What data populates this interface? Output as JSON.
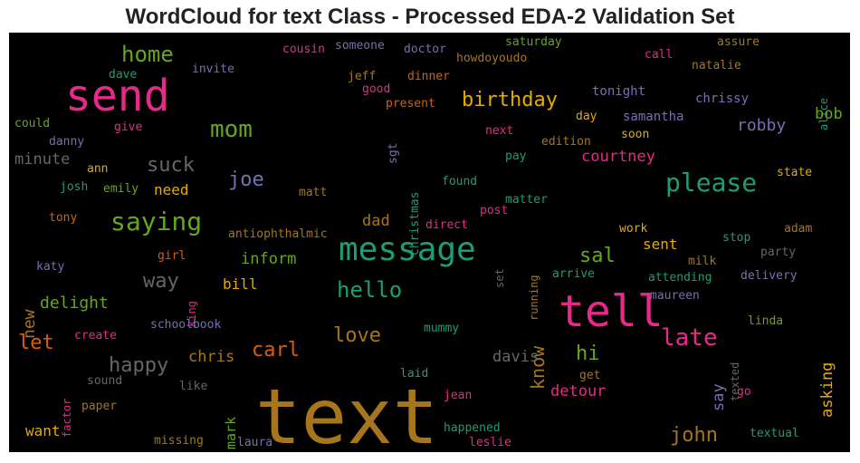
{
  "title": "WordCloud for text Class - Processed EDA-2 Validation Set",
  "colors": {
    "pink": "#e7298a",
    "green": "#1b9e77",
    "lime": "#66a61e",
    "gold": "#e6ab02",
    "purple": "#7570b3",
    "orange": "#d95f02",
    "brown": "#a6761d",
    "gray": "#666666"
  },
  "words": [
    {
      "text": "text",
      "color": "brown"
    },
    {
      "text": "tell",
      "color": "pink"
    },
    {
      "text": "send",
      "color": "pink"
    },
    {
      "text": "message",
      "color": "green"
    },
    {
      "text": "saying",
      "color": "lime"
    },
    {
      "text": "please",
      "color": "green"
    },
    {
      "text": "home",
      "color": "lime"
    },
    {
      "text": "mom",
      "color": "lime"
    },
    {
      "text": "birthday",
      "color": "gold"
    },
    {
      "text": "hello",
      "color": "green"
    },
    {
      "text": "late",
      "color": "pink"
    },
    {
      "text": "love",
      "color": "brown"
    },
    {
      "text": "carl",
      "color": "orange"
    },
    {
      "text": "joe",
      "color": "purple"
    },
    {
      "text": "suck",
      "color": "gray"
    },
    {
      "text": "way",
      "color": "gray"
    },
    {
      "text": "happy",
      "color": "gray"
    },
    {
      "text": "let",
      "color": "orange"
    },
    {
      "text": "know",
      "color": "brown"
    },
    {
      "text": "sal",
      "color": "lime"
    },
    {
      "text": "hi",
      "color": "lime"
    },
    {
      "text": "john",
      "color": "brown"
    },
    {
      "text": "robby",
      "color": "purple"
    },
    {
      "text": "new",
      "color": "brown"
    },
    {
      "text": "delight",
      "color": "lime"
    },
    {
      "text": "inform",
      "color": "lime"
    },
    {
      "text": "dad",
      "color": "brown"
    },
    {
      "text": "chris",
      "color": "brown"
    },
    {
      "text": "courtney",
      "color": "pink"
    },
    {
      "text": "bob",
      "color": "lime"
    },
    {
      "text": "davis",
      "color": "gray"
    },
    {
      "text": "detour",
      "color": "pink"
    },
    {
      "text": "say",
      "color": "purple"
    },
    {
      "text": "asking",
      "color": "gold"
    },
    {
      "text": "minute",
      "color": "gray"
    },
    {
      "text": "need",
      "color": "gold"
    },
    {
      "text": "bill",
      "color": "gold"
    },
    {
      "text": "sent",
      "color": "gold"
    },
    {
      "text": "want",
      "color": "gold"
    },
    {
      "text": "mark",
      "color": "lime"
    },
    {
      "text": "chrissy",
      "color": "purple"
    },
    {
      "text": "tonight",
      "color": "purple"
    },
    {
      "text": "samantha",
      "color": "purple"
    },
    {
      "text": "natalie",
      "color": "brown"
    },
    {
      "text": "call",
      "color": "pink"
    },
    {
      "text": "assure",
      "color": "brown"
    },
    {
      "text": "saturday",
      "color": "lime"
    },
    {
      "text": "doctor",
      "color": "purple"
    },
    {
      "text": "someone",
      "color": "purple"
    },
    {
      "text": "cousin",
      "color": "pink"
    },
    {
      "text": "jeff",
      "color": "brown"
    },
    {
      "text": "dinner",
      "color": "orange"
    },
    {
      "text": "good",
      "color": "pink"
    },
    {
      "text": "present",
      "color": "orange"
    },
    {
      "text": "howdoyoudo",
      "color": "brown"
    },
    {
      "text": "invite",
      "color": "purple"
    },
    {
      "text": "dave",
      "color": "green"
    },
    {
      "text": "could",
      "color": "lime"
    },
    {
      "text": "give",
      "color": "pink"
    },
    {
      "text": "danny",
      "color": "purple"
    },
    {
      "text": "ann",
      "color": "gold"
    },
    {
      "text": "josh",
      "color": "green"
    },
    {
      "text": "emily",
      "color": "lime"
    },
    {
      "text": "matt",
      "color": "brown"
    },
    {
      "text": "tony",
      "color": "orange"
    },
    {
      "text": "katy",
      "color": "purple"
    },
    {
      "text": "girl",
      "color": "orange"
    },
    {
      "text": "king",
      "color": "pink"
    },
    {
      "text": "antiophthalmic",
      "color": "brown"
    },
    {
      "text": "christmas",
      "color": "green"
    },
    {
      "text": "sgt",
      "color": "purple"
    },
    {
      "text": "next",
      "color": "pink"
    },
    {
      "text": "day",
      "color": "gold"
    },
    {
      "text": "edition",
      "color": "brown"
    },
    {
      "text": "soon",
      "color": "gold"
    },
    {
      "text": "pay",
      "color": "green"
    },
    {
      "text": "found",
      "color": "green"
    },
    {
      "text": "matter",
      "color": "green"
    },
    {
      "text": "post",
      "color": "pink"
    },
    {
      "text": "direct",
      "color": "pink"
    },
    {
      "text": "running",
      "color": "brown"
    },
    {
      "text": "set",
      "color": "gray"
    },
    {
      "text": "arrive",
      "color": "green"
    },
    {
      "text": "work",
      "color": "gold"
    },
    {
      "text": "stop",
      "color": "green"
    },
    {
      "text": "adam",
      "color": "brown"
    },
    {
      "text": "party",
      "color": "gray"
    },
    {
      "text": "milk",
      "color": "brown"
    },
    {
      "text": "attending",
      "color": "green"
    },
    {
      "text": "delivery",
      "color": "purple"
    },
    {
      "text": "maureen",
      "color": "purple"
    },
    {
      "text": "linda",
      "color": "lime"
    },
    {
      "text": "texted",
      "color": "gray"
    },
    {
      "text": "alice",
      "color": "green"
    },
    {
      "text": "state",
      "color": "gold"
    },
    {
      "text": "schoolbook",
      "color": "purple"
    },
    {
      "text": "mummy",
      "color": "green"
    },
    {
      "text": "create",
      "color": "pink"
    },
    {
      "text": "factor",
      "color": "pink"
    },
    {
      "text": "sound",
      "color": "gray"
    },
    {
      "text": "like",
      "color": "gray"
    },
    {
      "text": "paper",
      "color": "brown"
    },
    {
      "text": "laid",
      "color": "green"
    },
    {
      "text": "get",
      "color": "brown"
    },
    {
      "text": "jean",
      "color": "pink"
    },
    {
      "text": "go",
      "color": "pink"
    },
    {
      "text": "happened",
      "color": "green"
    },
    {
      "text": "leslie",
      "color": "pink"
    },
    {
      "text": "missing",
      "color": "brown"
    },
    {
      "text": "laura",
      "color": "purple"
    },
    {
      "text": "textual",
      "color": "green"
    }
  ]
}
